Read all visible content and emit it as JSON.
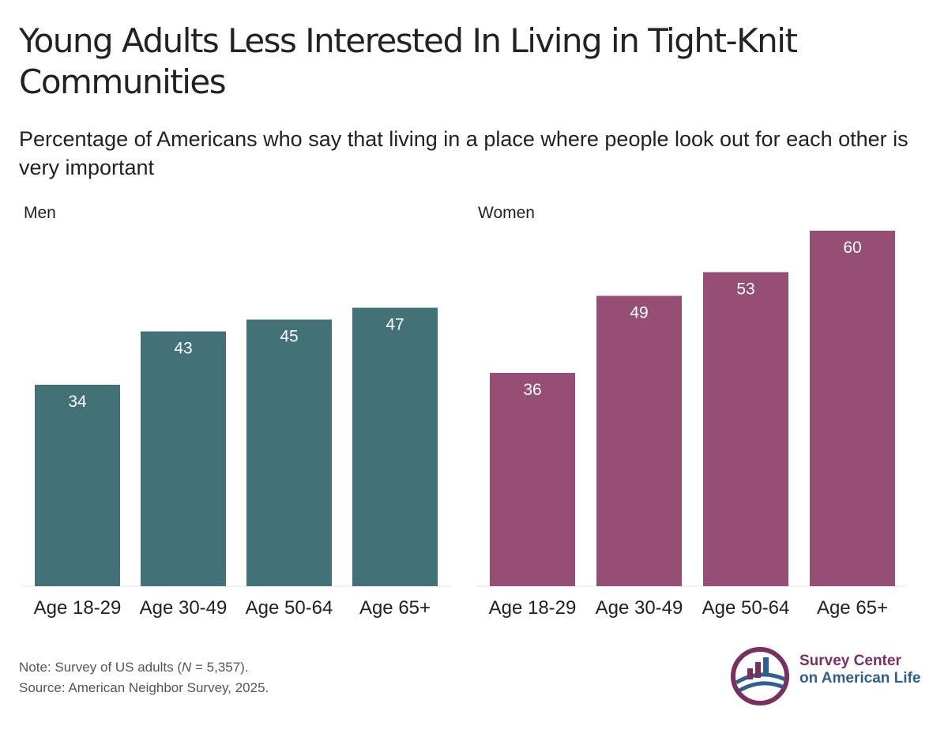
{
  "title": "Young Adults Less Interested In Living in Tight-Knit Communities",
  "subtitle": "Percentage of Americans who say that living in a place where people look out for each other is very important",
  "chart_data": [
    {
      "type": "bar",
      "panel": "Men",
      "categories": [
        "Age 18-29",
        "Age 30-49",
        "Age 50-64",
        "Age 65+"
      ],
      "values": [
        34,
        43,
        45,
        47
      ],
      "color": "#437178",
      "ylim": [
        0,
        60
      ],
      "grid": false
    },
    {
      "type": "bar",
      "panel": "Women",
      "categories": [
        "Age 18-29",
        "Age 30-49",
        "Age 50-64",
        "Age 65+"
      ],
      "values": [
        36,
        49,
        53,
        60
      ],
      "color": "#964e74",
      "ylim": [
        0,
        60
      ],
      "grid": false
    }
  ],
  "note": {
    "prefix": "Note: Survey of US adults (",
    "n_label": "N",
    "suffix": " = 5,357).",
    "source": "Source: American Neighbor Survey, 2025."
  },
  "logo": {
    "line1": "Survey Center",
    "line2": "on American Life",
    "colors": {
      "primary": "#7b2f5f",
      "secondary": "#2f5f8a"
    }
  }
}
